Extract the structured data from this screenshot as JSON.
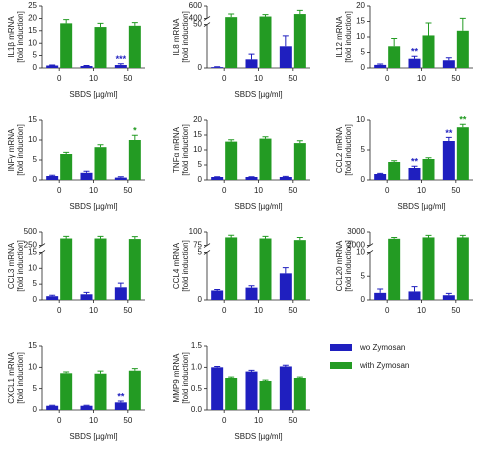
{
  "chart_data": [
    {
      "type": "bar",
      "ylabel": [
        "IL1β mRNA",
        "[fold induction]"
      ],
      "xlabel": "SBDS [µg/ml]",
      "categories": [
        "0",
        "10",
        "50"
      ],
      "ylim": [
        0,
        25
      ],
      "yticks": [
        0,
        5,
        10,
        15,
        20,
        25
      ],
      "series": [
        {
          "color": "#1f1fbf",
          "values": [
            1,
            0.8,
            1.2
          ],
          "errors": [
            0.2,
            0.2,
            0.5
          ]
        },
        {
          "color": "#239b23",
          "values": [
            18,
            16.5,
            17
          ],
          "errors": [
            1.5,
            1.5,
            1.3
          ]
        }
      ],
      "annotations": [
        {
          "text": "***",
          "series": 0,
          "index": 2
        }
      ]
    },
    {
      "type": "bar",
      "ylabel": [
        "IL8 mRNA",
        "[fold induction]"
      ],
      "xlabel": "SBDS [µg/ml]",
      "categories": [
        "0",
        "10",
        "50"
      ],
      "ylim": [
        0,
        600
      ],
      "ybreak": [
        50,
        400
      ],
      "yticks": [
        0,
        50,
        400,
        600
      ],
      "series": [
        {
          "color": "#1f1fbf",
          "values": [
            1,
            10,
            25
          ],
          "errors": [
            0.5,
            6,
            12
          ]
        },
        {
          "color": "#239b23",
          "values": [
            420,
            430,
            470
          ],
          "errors": [
            50,
            30,
            60
          ]
        }
      ]
    },
    {
      "type": "bar",
      "ylabel": [
        "IL12 mRNA",
        "[fold induction]"
      ],
      "categories": [
        "0",
        "10",
        "50"
      ],
      "ylim": [
        0,
        20
      ],
      "yticks": [
        0,
        5,
        10,
        15,
        20
      ],
      "series": [
        {
          "color": "#1f1fbf",
          "values": [
            1,
            3,
            2.5
          ],
          "errors": [
            0.3,
            0.8,
            0.8
          ]
        },
        {
          "color": "#239b23",
          "values": [
            7,
            10.5,
            12
          ],
          "errors": [
            2.5,
            4,
            4
          ]
        }
      ],
      "annotations": [
        {
          "text": "**",
          "series": 0,
          "index": 1
        }
      ]
    },
    {
      "type": "bar",
      "ylabel": [
        "INFγ mRNA",
        "[fold induction]"
      ],
      "xlabel": "SBDS [µg/ml]",
      "categories": [
        "0",
        "10",
        "50"
      ],
      "ylim": [
        0,
        15
      ],
      "yticks": [
        0,
        5,
        10,
        15
      ],
      "series": [
        {
          "color": "#1f1fbf",
          "values": [
            1,
            1.8,
            0.6
          ],
          "errors": [
            0.2,
            0.4,
            0.2
          ]
        },
        {
          "color": "#239b23",
          "values": [
            6.5,
            8.2,
            10
          ],
          "errors": [
            0.4,
            0.6,
            1.2
          ]
        }
      ],
      "annotations": [
        {
          "text": "*",
          "series": 1,
          "index": 2
        }
      ]
    },
    {
      "type": "bar",
      "ylabel": [
        "TNFα mRNA",
        "[fold induction]"
      ],
      "xlabel": "SBDS [µg/ml]",
      "categories": [
        "0",
        "10",
        "50"
      ],
      "ylim": [
        0,
        20
      ],
      "yticks": [
        0,
        5,
        10,
        15,
        20
      ],
      "series": [
        {
          "color": "#1f1fbf",
          "values": [
            1,
            1,
            1
          ],
          "errors": [
            0.1,
            0.1,
            0.2
          ]
        },
        {
          "color": "#239b23",
          "values": [
            12.8,
            13.8,
            12.3
          ],
          "errors": [
            0.6,
            0.6,
            0.8
          ]
        }
      ]
    },
    {
      "type": "bar",
      "ylabel": [
        "CCL2 mRNA",
        "[fold induction]"
      ],
      "xlabel": "SBDS [µg/ml]",
      "categories": [
        "0",
        "10",
        "50"
      ],
      "ylim": [
        0,
        10
      ],
      "yticks": [
        0,
        5,
        10
      ],
      "series": [
        {
          "color": "#1f1fbf",
          "values": [
            1,
            2,
            6.5
          ],
          "errors": [
            0.1,
            0.3,
            0.6
          ]
        },
        {
          "color": "#239b23",
          "values": [
            3,
            3.5,
            8.8
          ],
          "errors": [
            0.2,
            0.2,
            0.5
          ]
        }
      ],
      "annotations": [
        {
          "text": "**",
          "series": 0,
          "index": 1
        },
        {
          "text": "**",
          "series": 0,
          "index": 2
        },
        {
          "text": "**",
          "series": 1,
          "index": 2
        }
      ]
    },
    {
      "type": "bar",
      "ylabel": [
        "CCL3 mRNA",
        "[fold induction]"
      ],
      "categories": [
        "0",
        "10",
        "50"
      ],
      "ylim": [
        0,
        500
      ],
      "ybreak": [
        15,
        250
      ],
      "yticks": [
        0,
        5,
        10,
        15,
        250,
        500
      ],
      "series": [
        {
          "color": "#1f1fbf",
          "values": [
            1.2,
            1.8,
            4
          ],
          "errors": [
            0.3,
            0.6,
            1.3
          ]
        },
        {
          "color": "#239b23",
          "values": [
            380,
            380,
            370
          ],
          "errors": [
            40,
            40,
            45
          ]
        }
      ]
    },
    {
      "type": "bar",
      "ylabel": [
        "CCL4 mRNA",
        "[fold induction]"
      ],
      "categories": [
        "0",
        "10",
        "50"
      ],
      "ylim": [
        0,
        100
      ],
      "ybreak": [
        5,
        75
      ],
      "yticks": [
        0,
        5,
        75,
        100
      ],
      "series": [
        {
          "color": "#1f1fbf",
          "values": [
            1,
            1.3,
            2.8
          ],
          "errors": [
            0.1,
            0.2,
            0.6
          ]
        },
        {
          "color": "#239b23",
          "values": [
            90,
            88,
            85
          ],
          "errors": [
            4,
            4,
            5
          ]
        }
      ]
    },
    {
      "type": "bar",
      "ylabel": [
        "CCL20 mRNA",
        "[fold induction]"
      ],
      "categories": [
        "0",
        "10",
        "50"
      ],
      "ylim": [
        0,
        3000
      ],
      "ybreak": [
        10,
        2000
      ],
      "yticks": [
        0,
        5,
        10,
        2000,
        3000
      ],
      "series": [
        {
          "color": "#1f1fbf",
          "values": [
            1.5,
            1.8,
            1
          ],
          "errors": [
            0.8,
            1,
            0.4
          ]
        },
        {
          "color": "#239b23",
          "values": [
            2500,
            2600,
            2600
          ],
          "errors": [
            100,
            150,
            150
          ]
        }
      ]
    },
    {
      "type": "bar",
      "ylabel": [
        "CXCL1 mRNA",
        "[fold induction]"
      ],
      "xlabel": "SBDS [µg/ml]",
      "categories": [
        "0",
        "10",
        "50"
      ],
      "ylim": [
        0,
        15
      ],
      "yticks": [
        0,
        5,
        10,
        15
      ],
      "series": [
        {
          "color": "#1f1fbf",
          "values": [
            1,
            1,
            1.8
          ],
          "errors": [
            0.1,
            0.1,
            0.3
          ]
        },
        {
          "color": "#239b23",
          "values": [
            8.6,
            8.5,
            9.2
          ],
          "errors": [
            0.3,
            0.6,
            0.5
          ]
        }
      ],
      "annotations": [
        {
          "text": "**",
          "series": 0,
          "index": 2
        }
      ]
    },
    {
      "type": "bar",
      "ylabel": [
        "MMP9 mRNA",
        "[fold induction]"
      ],
      "xlabel": "SBDS [µg/ml]",
      "categories": [
        "0",
        "10",
        "50"
      ],
      "ylim": [
        0,
        1.5
      ],
      "yticks": [
        {
          "value": 0,
          "label": "0.0"
        },
        0.5,
        {
          "value": 1,
          "label": "1.0"
        },
        1.5
      ],
      "series": [
        {
          "name": "wo Zymosan",
          "color": "#1f1fbf",
          "values": [
            1,
            0.9,
            1.02
          ],
          "errors": [
            0.02,
            0.03,
            0.03
          ]
        },
        {
          "name": "with Zymosan",
          "color": "#239b23",
          "values": [
            0.75,
            0.68,
            0.75
          ],
          "errors": [
            0.02,
            0.02,
            0.02
          ]
        }
      ]
    }
  ]
}
